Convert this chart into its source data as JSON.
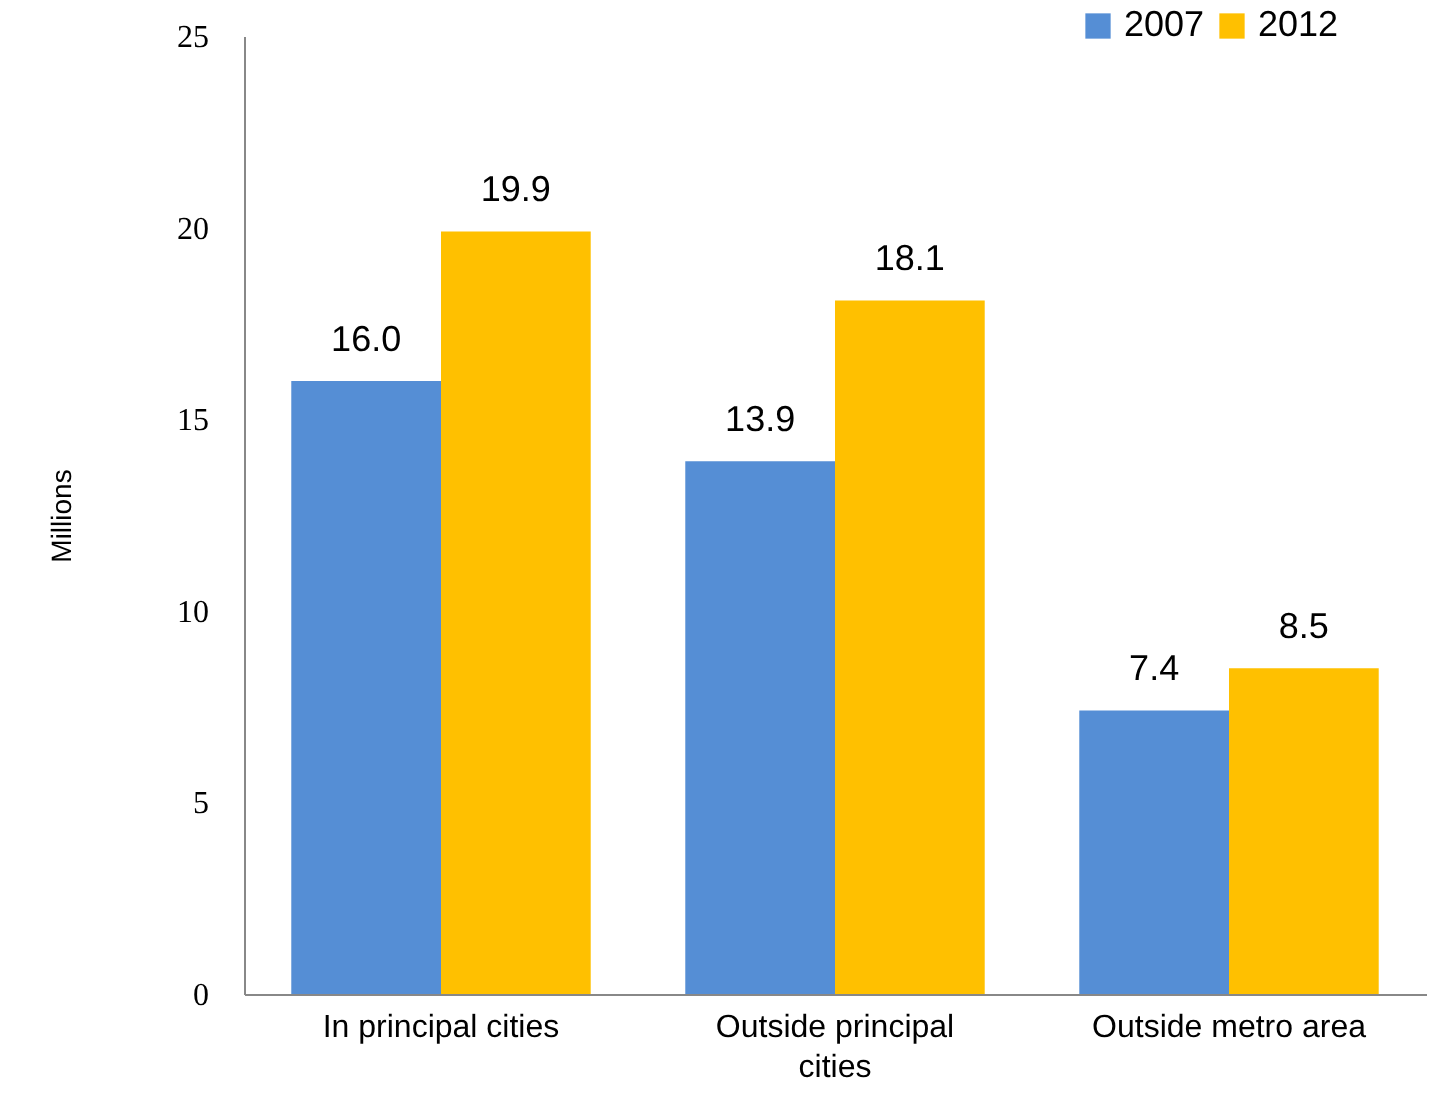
{
  "chart_data": {
    "type": "bar",
    "ylabel": "Millions",
    "categories": [
      "In principal cities",
      "Outside principal cities",
      "Outside metro area"
    ],
    "series": [
      {
        "name": "2007",
        "color": "#558ed5",
        "values": [
          16.0,
          13.9,
          7.4
        ]
      },
      {
        "name": "2012",
        "color": "#ffc000",
        "values": [
          19.9,
          18.1,
          8.5
        ]
      }
    ],
    "value_labels": [
      [
        "16.0",
        "13.9",
        "7.4"
      ],
      [
        "19.9",
        "18.1",
        "8.5"
      ]
    ],
    "ylim": [
      0,
      25
    ],
    "yticks": [
      0,
      5,
      10,
      15,
      20,
      25
    ],
    "legend": "top right"
  }
}
